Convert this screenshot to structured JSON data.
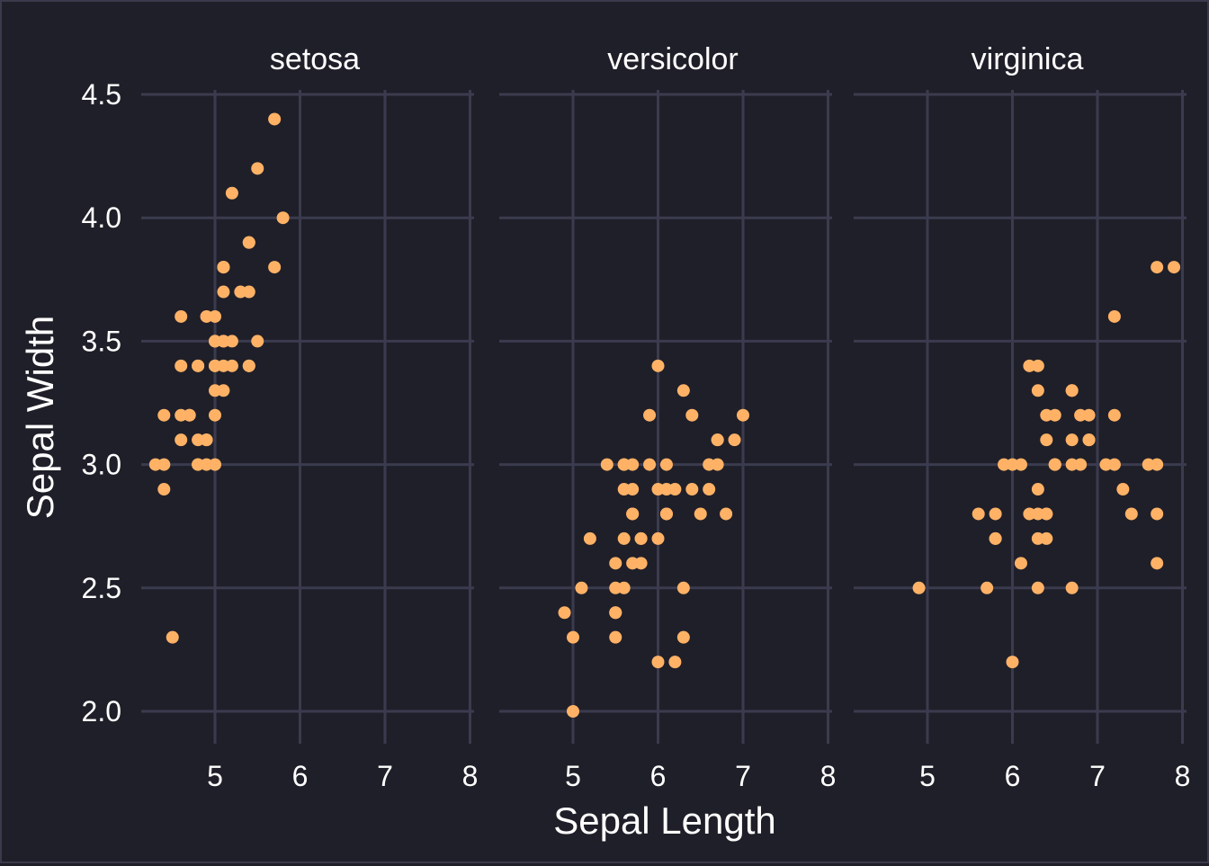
{
  "chart_data": {
    "type": "scatter",
    "facet_by": "species",
    "xlabel": "Sepal Length",
    "ylabel": "Sepal Width",
    "xlim": [
      4.2,
      8.1
    ],
    "ylim": [
      1.9,
      4.55
    ],
    "x_ticks": [
      5,
      6,
      7,
      8
    ],
    "y_ticks": [
      2.0,
      2.5,
      3.0,
      3.5,
      4.0,
      4.5
    ],
    "y_tick_labels": [
      "2.0",
      "2.5",
      "3.0",
      "3.5",
      "4.0",
      "4.5"
    ],
    "grid": true,
    "point_color": "#ffb266",
    "background_color": "#1f1f29",
    "grid_color": "#3b3b4f",
    "panels": [
      {
        "label": "setosa",
        "x": [
          5.1,
          4.9,
          4.7,
          4.6,
          5.0,
          5.4,
          4.6,
          5.0,
          4.4,
          4.9,
          5.4,
          4.8,
          4.8,
          4.3,
          5.8,
          5.7,
          5.4,
          5.1,
          5.7,
          5.1,
          5.4,
          5.1,
          4.6,
          5.1,
          4.8,
          5.0,
          5.0,
          5.2,
          5.2,
          4.7,
          4.8,
          5.4,
          5.2,
          5.5,
          4.9,
          5.0,
          5.5,
          4.9,
          4.4,
          5.1,
          5.0,
          4.5,
          4.4,
          5.0,
          5.1,
          4.8,
          5.1,
          4.6,
          5.3,
          5.0
        ],
        "y": [
          3.5,
          3.0,
          3.2,
          3.1,
          3.6,
          3.9,
          3.4,
          3.4,
          2.9,
          3.1,
          3.7,
          3.4,
          3.0,
          3.0,
          4.0,
          4.4,
          3.9,
          3.5,
          3.8,
          3.8,
          3.4,
          3.7,
          3.6,
          3.3,
          3.4,
          3.0,
          3.4,
          3.5,
          3.4,
          3.2,
          3.1,
          3.4,
          4.1,
          4.2,
          3.1,
          3.2,
          3.5,
          3.6,
          3.0,
          3.4,
          3.5,
          2.3,
          3.2,
          3.5,
          3.8,
          3.0,
          3.8,
          3.2,
          3.7,
          3.3
        ]
      },
      {
        "label": "versicolor",
        "x": [
          7.0,
          6.4,
          6.9,
          5.5,
          6.5,
          5.7,
          6.3,
          4.9,
          6.6,
          5.2,
          5.0,
          5.9,
          6.0,
          6.1,
          5.6,
          6.7,
          5.6,
          5.8,
          6.2,
          5.6,
          5.9,
          6.1,
          6.3,
          6.1,
          6.4,
          6.6,
          6.8,
          6.7,
          6.0,
          5.7,
          5.5,
          5.5,
          5.8,
          6.0,
          5.4,
          6.0,
          6.7,
          6.3,
          5.6,
          5.5,
          5.5,
          6.1,
          5.8,
          5.0,
          5.6,
          5.7,
          5.7,
          6.2,
          5.1,
          5.7
        ],
        "y": [
          3.2,
          3.2,
          3.1,
          2.3,
          2.8,
          2.8,
          3.3,
          2.4,
          2.9,
          2.7,
          2.0,
          3.0,
          2.2,
          2.9,
          2.9,
          3.1,
          3.0,
          2.7,
          2.2,
          2.5,
          3.2,
          2.8,
          2.5,
          2.8,
          2.9,
          3.0,
          2.8,
          3.0,
          2.9,
          2.6,
          2.4,
          2.4,
          2.7,
          2.7,
          3.0,
          3.4,
          3.1,
          2.3,
          3.0,
          2.5,
          2.6,
          3.0,
          2.6,
          2.3,
          2.7,
          3.0,
          2.9,
          2.9,
          2.5,
          2.8
        ]
      },
      {
        "label": "virginica",
        "x": [
          6.3,
          5.8,
          7.1,
          6.3,
          6.5,
          7.6,
          4.9,
          7.3,
          6.7,
          7.2,
          6.5,
          6.4,
          6.8,
          5.7,
          5.8,
          6.4,
          6.5,
          7.7,
          7.7,
          6.0,
          6.9,
          5.6,
          7.7,
          6.3,
          6.7,
          7.2,
          6.2,
          6.1,
          6.4,
          7.2,
          7.4,
          7.9,
          6.4,
          6.3,
          6.1,
          7.7,
          6.3,
          6.4,
          6.0,
          6.9,
          6.7,
          6.9,
          5.8,
          6.8,
          6.7,
          6.7,
          6.3,
          6.5,
          6.2,
          5.9
        ],
        "y": [
          3.3,
          2.7,
          3.0,
          2.9,
          3.0,
          3.0,
          2.5,
          2.9,
          2.5,
          3.6,
          3.2,
          2.7,
          3.0,
          2.5,
          2.8,
          3.2,
          3.0,
          3.8,
          2.6,
          2.2,
          3.2,
          2.8,
          2.8,
          2.7,
          3.3,
          3.2,
          2.8,
          3.0,
          2.8,
          3.0,
          2.8,
          3.8,
          2.8,
          2.8,
          2.6,
          3.0,
          3.4,
          3.1,
          3.0,
          3.1,
          3.1,
          3.1,
          2.7,
          3.2,
          3.3,
          3.0,
          2.5,
          3.0,
          3.4,
          3.0
        ]
      }
    ]
  }
}
